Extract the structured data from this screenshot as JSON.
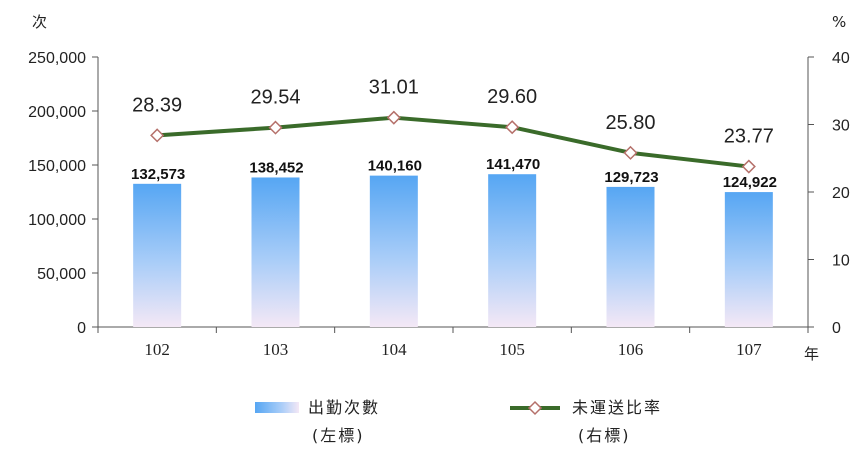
{
  "chart_data": {
    "type": "bar",
    "categories": [
      "102",
      "103",
      "104",
      "105",
      "106",
      "107"
    ],
    "series": [
      {
        "name": "出勤次數",
        "name_sub": "(左標)",
        "type": "bar",
        "axis": "left",
        "color": "#5aaaf4",
        "values": [
          132573,
          138452,
          140160,
          141470,
          129723,
          124922
        ],
        "labels": [
          "132,573",
          "138,452",
          "140,160",
          "141,470",
          "129,723",
          "124,922"
        ]
      },
      {
        "name": "未運送比率",
        "name_sub": "(右標)",
        "type": "line",
        "axis": "right",
        "color": "#3a6b2a",
        "marker": "diamond",
        "values": [
          28.39,
          29.54,
          31.01,
          29.6,
          25.8,
          23.77
        ],
        "labels": [
          "28.39",
          "29.54",
          "31.01",
          "29.60",
          "25.80",
          "23.77"
        ]
      }
    ],
    "y_left": {
      "unit": "次",
      "lim": [
        0,
        250000
      ],
      "ticks": [
        0,
        50000,
        100000,
        150000,
        200000,
        250000
      ],
      "tick_labels": [
        "0",
        "50,000",
        "100,000",
        "150,000",
        "200,000",
        "250,000"
      ]
    },
    "y_right": {
      "unit": "%",
      "lim": [
        0,
        40
      ],
      "ticks": [
        0,
        10,
        20,
        30,
        40
      ],
      "tick_labels": [
        "0",
        "10",
        "20",
        "30",
        "40"
      ]
    },
    "x_unit": "年",
    "legend_position": "bottom",
    "grid": false
  }
}
